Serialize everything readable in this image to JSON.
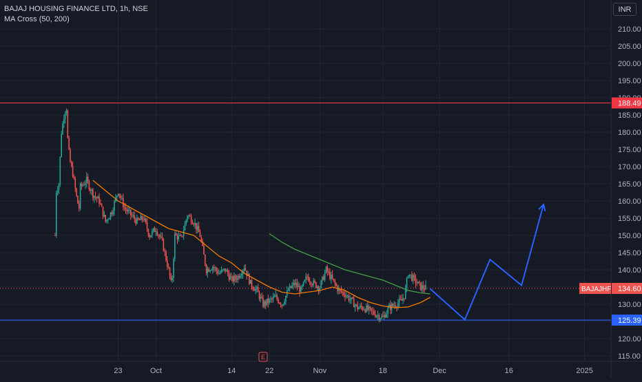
{
  "header": {
    "symbol_line": "BAJAJ HOUSING FINANCE LTD, 1h, NSE",
    "indicator_line": "MA Cross (50, 200)",
    "currency": "INR"
  },
  "colors": {
    "background": "#161a25",
    "grid": "#232632",
    "up_candle": "#26a69a",
    "down_candle": "#ef5350",
    "ma_fast": "#f57c00",
    "ma_slow": "#43a047",
    "projection": "#2962ff",
    "resistance": "#f23645",
    "support": "#2962ff"
  },
  "chart_data": {
    "type": "candlestick",
    "y_axis": {
      "ylim": [
        112,
        214
      ],
      "ticks": [
        115,
        120,
        125,
        130,
        135,
        140,
        145,
        150,
        155,
        160,
        165,
        170,
        175,
        180,
        185,
        190,
        195,
        200,
        205,
        210
      ],
      "tick_labels": [
        "115.00",
        "120.00",
        "125.00",
        "130.00",
        "135.00",
        "140.00",
        "145.00",
        "150.00",
        "155.00",
        "160.00",
        "165.00",
        "170.00",
        "175.00",
        "180.00",
        "185.00",
        "190.00",
        "195.00",
        "200.00",
        "205.00",
        "210.00"
      ]
    },
    "x_axis": {
      "ticks": [
        {
          "label": "23",
          "t": 10
        },
        {
          "label": "Oct",
          "t": 16
        },
        {
          "label": "14",
          "t": 28
        },
        {
          "label": "22",
          "t": 34
        },
        {
          "label": "Nov",
          "t": 42
        },
        {
          "label": "18",
          "t": 52
        },
        {
          "label": "Dec",
          "t": 61
        },
        {
          "label": "16",
          "t": 72
        },
        {
          "label": "2025",
          "t": 84
        }
      ]
    },
    "last_price": {
      "label": "BAJAJHFL",
      "value": 134.6,
      "text": "134.60"
    },
    "horizontal_lines": [
      {
        "name": "resistance",
        "value": 188.49,
        "text": "188.49"
      },
      {
        "name": "support",
        "value": 125.39,
        "text": "125.39"
      }
    ],
    "price_path": [
      {
        "t": 0,
        "v": 150
      },
      {
        "t": 0.2,
        "v": 163
      },
      {
        "t": 0.6,
        "v": 165
      },
      {
        "t": 1,
        "v": 180
      },
      {
        "t": 1.5,
        "v": 186
      },
      {
        "t": 1.8,
        "v": 187
      },
      {
        "t": 2,
        "v": 178
      },
      {
        "t": 2.3,
        "v": 172
      },
      {
        "t": 2.8,
        "v": 168
      },
      {
        "t": 3.5,
        "v": 160
      },
      {
        "t": 3.8,
        "v": 158
      },
      {
        "t": 4,
        "v": 164
      },
      {
        "t": 5,
        "v": 166
      },
      {
        "t": 6,
        "v": 162
      },
      {
        "t": 7,
        "v": 160
      },
      {
        "t": 8,
        "v": 154
      },
      {
        "t": 9,
        "v": 157
      },
      {
        "t": 10,
        "v": 163
      },
      {
        "t": 11,
        "v": 158
      },
      {
        "t": 12,
        "v": 156
      },
      {
        "t": 13,
        "v": 154
      },
      {
        "t": 14,
        "v": 155
      },
      {
        "t": 15,
        "v": 150
      },
      {
        "t": 16,
        "v": 152
      },
      {
        "t": 17,
        "v": 148
      },
      {
        "t": 18,
        "v": 140
      },
      {
        "t": 18.5,
        "v": 135
      },
      {
        "t": 19,
        "v": 150
      },
      {
        "t": 20,
        "v": 149
      },
      {
        "t": 21,
        "v": 156
      },
      {
        "t": 22,
        "v": 154
      },
      {
        "t": 23,
        "v": 150
      },
      {
        "t": 24,
        "v": 140
      },
      {
        "t": 25,
        "v": 141
      },
      {
        "t": 26,
        "v": 139
      },
      {
        "t": 27,
        "v": 140
      },
      {
        "t": 28,
        "v": 137
      },
      {
        "t": 29,
        "v": 138
      },
      {
        "t": 30,
        "v": 141
      },
      {
        "t": 31,
        "v": 136
      },
      {
        "t": 32,
        "v": 134
      },
      {
        "t": 33,
        "v": 130
      },
      {
        "t": 34,
        "v": 131
      },
      {
        "t": 35,
        "v": 132
      },
      {
        "t": 36,
        "v": 130
      },
      {
        "t": 37,
        "v": 134
      },
      {
        "t": 38,
        "v": 136
      },
      {
        "t": 39,
        "v": 134
      },
      {
        "t": 40,
        "v": 138
      },
      {
        "t": 41,
        "v": 136
      },
      {
        "t": 42,
        "v": 135
      },
      {
        "t": 43,
        "v": 140
      },
      {
        "t": 44,
        "v": 137
      },
      {
        "t": 45,
        "v": 134
      },
      {
        "t": 46,
        "v": 133
      },
      {
        "t": 47,
        "v": 131
      },
      {
        "t": 48,
        "v": 129
      },
      {
        "t": 49,
        "v": 129
      },
      {
        "t": 50,
        "v": 128
      },
      {
        "t": 51,
        "v": 127
      },
      {
        "t": 52,
        "v": 126
      },
      {
        "t": 53,
        "v": 129
      },
      {
        "t": 54,
        "v": 130
      },
      {
        "t": 55,
        "v": 131
      },
      {
        "t": 55.5,
        "v": 133
      },
      {
        "t": 56,
        "v": 139
      },
      {
        "t": 57,
        "v": 137
      },
      {
        "t": 58,
        "v": 135
      },
      {
        "t": 59,
        "v": 134.6
      }
    ],
    "series": [
      {
        "name": "MA 50",
        "color": "#f57c00",
        "points": [
          {
            "t": 6,
            "v": 166
          },
          {
            "t": 8,
            "v": 163
          },
          {
            "t": 10,
            "v": 160
          },
          {
            "t": 12,
            "v": 158
          },
          {
            "t": 14,
            "v": 156
          },
          {
            "t": 16,
            "v": 154
          },
          {
            "t": 18,
            "v": 152
          },
          {
            "t": 20,
            "v": 151
          },
          {
            "t": 22,
            "v": 150
          },
          {
            "t": 24,
            "v": 147
          },
          {
            "t": 26,
            "v": 144
          },
          {
            "t": 28,
            "v": 142
          },
          {
            "t": 30,
            "v": 139
          },
          {
            "t": 32,
            "v": 137
          },
          {
            "t": 34,
            "v": 135
          },
          {
            "t": 36,
            "v": 133.5
          },
          {
            "t": 38,
            "v": 133
          },
          {
            "t": 40,
            "v": 133.5
          },
          {
            "t": 42,
            "v": 134
          },
          {
            "t": 44,
            "v": 135
          },
          {
            "t": 46,
            "v": 134
          },
          {
            "t": 48,
            "v": 132
          },
          {
            "t": 50,
            "v": 130.5
          },
          {
            "t": 52,
            "v": 129.5
          },
          {
            "t": 54,
            "v": 129
          },
          {
            "t": 56,
            "v": 129.2
          },
          {
            "t": 58,
            "v": 130.5
          },
          {
            "t": 59.5,
            "v": 132
          }
        ]
      },
      {
        "name": "MA 200",
        "color": "#43a047",
        "points": [
          {
            "t": 34,
            "v": 150.5
          },
          {
            "t": 36,
            "v": 148
          },
          {
            "t": 38,
            "v": 146
          },
          {
            "t": 40,
            "v": 144.5
          },
          {
            "t": 42,
            "v": 143
          },
          {
            "t": 44,
            "v": 141.5
          },
          {
            "t": 46,
            "v": 140
          },
          {
            "t": 48,
            "v": 139
          },
          {
            "t": 50,
            "v": 138
          },
          {
            "t": 52,
            "v": 137
          },
          {
            "t": 54,
            "v": 135.5
          },
          {
            "t": 56,
            "v": 134
          },
          {
            "t": 58,
            "v": 133.3
          },
          {
            "t": 59.5,
            "v": 133
          }
        ]
      }
    ],
    "projection": [
      {
        "t": 59.5,
        "v": 134.5
      },
      {
        "t": 65,
        "v": 125.5
      },
      {
        "t": 69,
        "v": 143
      },
      {
        "t": 74,
        "v": 135.5
      },
      {
        "t": 77.5,
        "v": 159
      }
    ],
    "event_marker": {
      "label": "E",
      "t": 33
    }
  }
}
